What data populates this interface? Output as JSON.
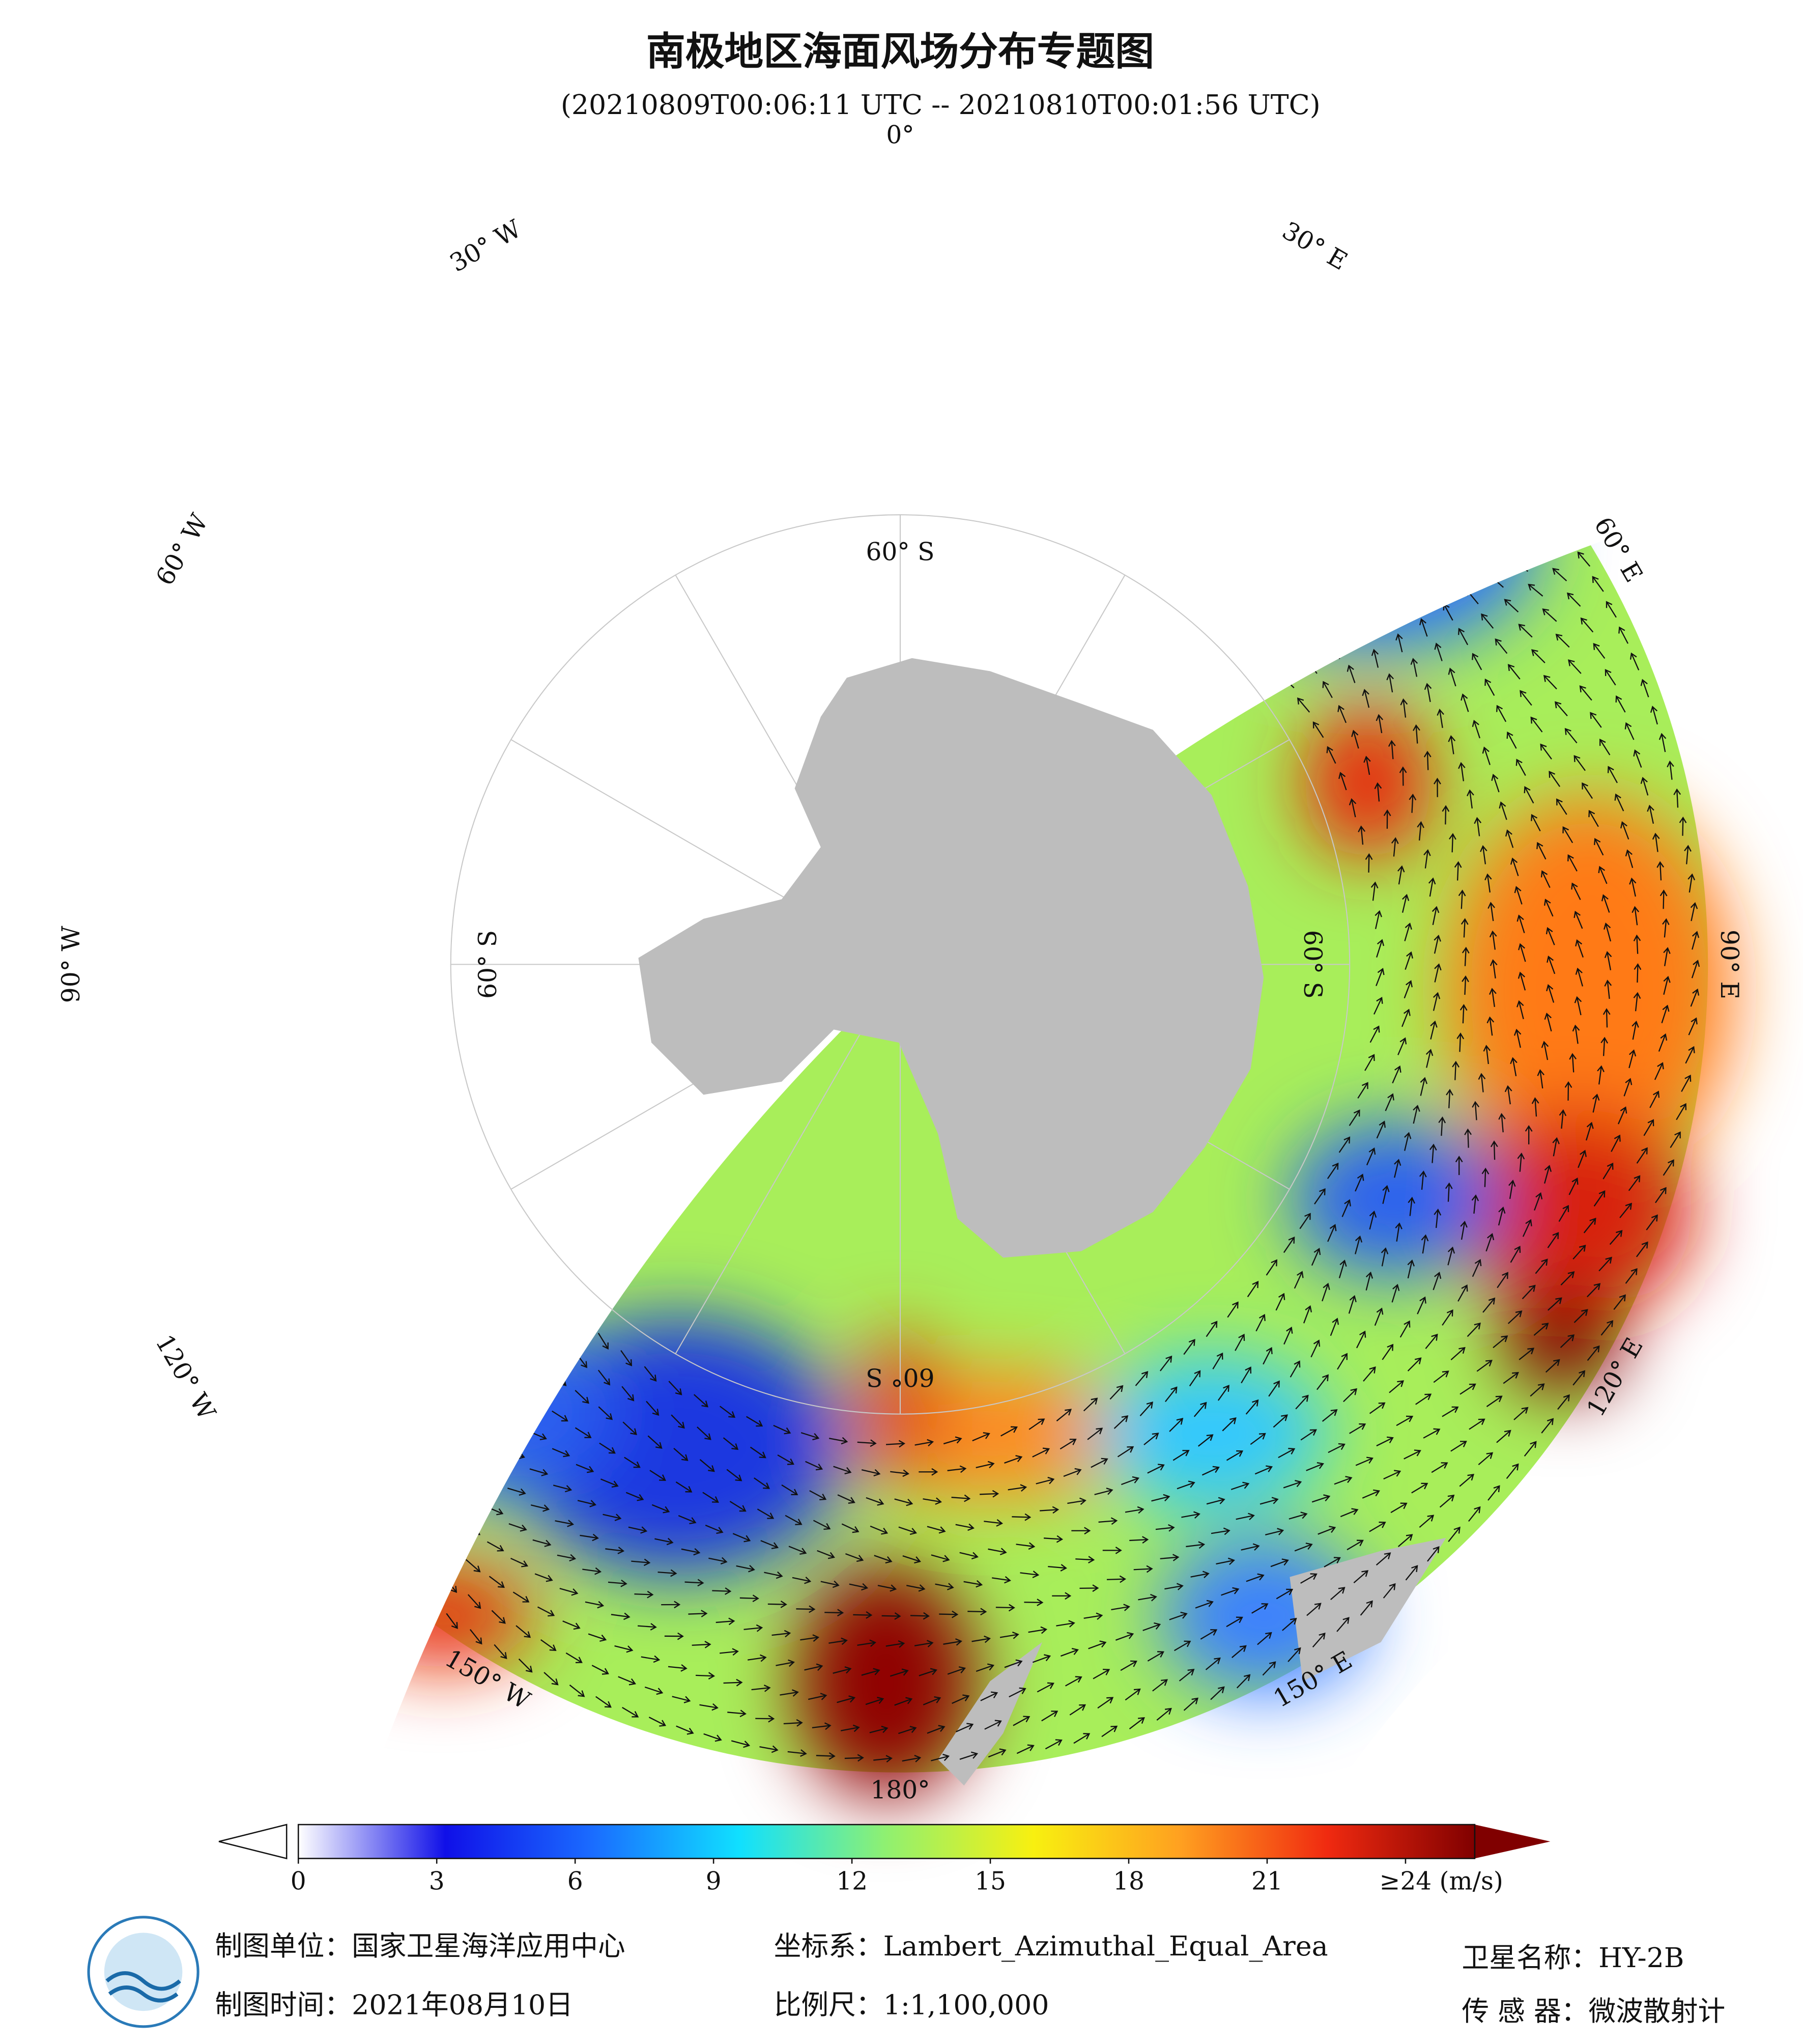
{
  "header": {
    "title": "南极地区海面风场分布专题图",
    "subtitle": "(20210809T00:06:11 UTC -- 20210810T00:01:56 UTC)"
  },
  "map": {
    "lon_labels": [
      {
        "value": 0,
        "label": "0°"
      },
      {
        "value": 30,
        "label": "30° E"
      },
      {
        "value": 60,
        "label": "60° E"
      },
      {
        "value": 90,
        "label": "90° E"
      },
      {
        "value": 120,
        "label": "120° E"
      },
      {
        "value": 150,
        "label": "150° E"
      },
      {
        "value": 180,
        "label": "180°"
      },
      {
        "value": -150,
        "label": "150° W"
      },
      {
        "value": -120,
        "label": "120° W"
      },
      {
        "value": -90,
        "label": "90° W"
      },
      {
        "value": -60,
        "label": "60° W"
      },
      {
        "value": -30,
        "label": "30° W"
      }
    ],
    "lat_circle": {
      "value": -60,
      "label": "60° S"
    }
  },
  "colorbar": {
    "lim": [
      0,
      25.5
    ],
    "ticks": [
      0,
      3,
      6,
      9,
      12,
      15,
      18,
      21,
      {
        "value": 24,
        "label": "≥24"
      }
    ],
    "unit": "(m/s)",
    "colors": [
      "#ffffff",
      "#1010e8",
      "#1a6cff",
      "#10e0ff",
      "#90f070",
      "#f8f010",
      "#ffa020",
      "#f02a10",
      "#800000"
    ]
  },
  "footer": {
    "org": "制图单位：国家卫星海洋应用中心",
    "crs": "坐标系：Lambert_Azimuthal_Equal_Area",
    "satellite": "卫星名称：HY-2B",
    "date": "制图时间：2021年08月10日",
    "scale": "比例尺：1:1,100,000",
    "sensor": "传 感 器：微波散射计"
  }
}
